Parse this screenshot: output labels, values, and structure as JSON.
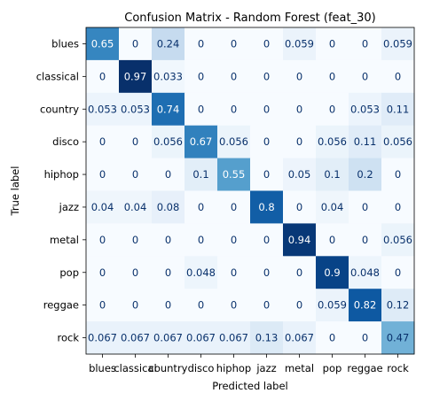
{
  "chart_data": {
    "type": "heatmap",
    "title": "Confusion Matrix - Random Forest (feat_30)",
    "xlabel": "Predicted label",
    "ylabel": "True label",
    "colormap": "Blues",
    "color_low": "#f7fbff",
    "color_high": "#08306b",
    "x_categories": [
      "blues",
      "classical",
      "country",
      "disco",
      "hiphop",
      "jazz",
      "metal",
      "pop",
      "reggae",
      "rock"
    ],
    "y_categories": [
      "blues",
      "classical",
      "country",
      "disco",
      "hiphop",
      "jazz",
      "metal",
      "pop",
      "reggae",
      "rock"
    ],
    "values": [
      [
        "0.65",
        "0",
        "0.24",
        "0",
        "0",
        "0",
        "0.059",
        "0",
        "0",
        "0.059"
      ],
      [
        "0",
        "0.97",
        "0.033",
        "0",
        "0",
        "0",
        "0",
        "0",
        "0",
        "0"
      ],
      [
        "0.053",
        "0.053",
        "0.74",
        "0",
        "0",
        "0",
        "0",
        "0",
        "0.053",
        "0.11"
      ],
      [
        "0",
        "0",
        "0.056",
        "0.67",
        "0.056",
        "0",
        "0",
        "0.056",
        "0.11",
        "0.056"
      ],
      [
        "0",
        "0",
        "0",
        "0.1",
        "0.55",
        "0",
        "0.05",
        "0.1",
        "0.2",
        "0"
      ],
      [
        "0.04",
        "0.04",
        "0.08",
        "0",
        "0",
        "0.8",
        "0",
        "0.04",
        "0",
        "0"
      ],
      [
        "0",
        "0",
        "0",
        "0",
        "0",
        "0",
        "0.94",
        "0",
        "0",
        "0.056"
      ],
      [
        "0",
        "0",
        "0",
        "0.048",
        "0",
        "0",
        "0",
        "0.9",
        "0.048",
        "0"
      ],
      [
        "0",
        "0",
        "0",
        "0",
        "0",
        "0",
        "0",
        "0.059",
        "0.82",
        "0.12"
      ],
      [
        "0.067",
        "0.067",
        "0.067",
        "0.067",
        "0.067",
        "0.13",
        "0.067",
        "0",
        "0",
        "0.47"
      ]
    ]
  }
}
